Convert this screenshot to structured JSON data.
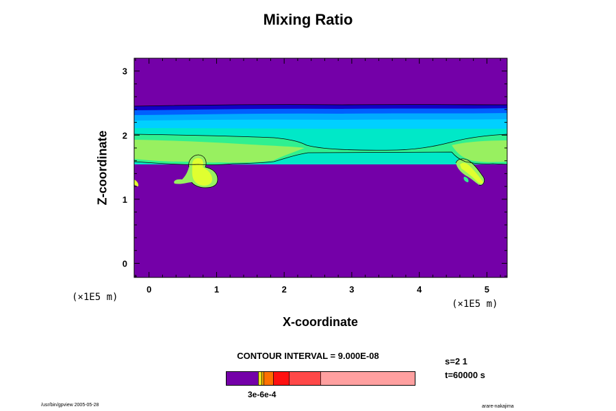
{
  "chart_data": {
    "type": "contour",
    "title": "Mixing Ratio",
    "xlabel": "X-coordinate",
    "ylabel": "Z-coordinate",
    "x_unit": "(×1E5 m)",
    "y_unit": "(×1E5 m)",
    "xlim": [
      -0.22,
      5.3
    ],
    "ylim": [
      -0.22,
      3.2
    ],
    "x_ticks": [
      "0",
      "1",
      "2",
      "3",
      "4",
      "5"
    ],
    "y_ticks": [
      "0",
      "1",
      "2",
      "3"
    ],
    "contour_interval": "CONTOUR INTERVAL = 9.000E-08",
    "colorbar_label": "3e-6e-4",
    "levels": [
      {
        "name": "background",
        "color": "#7400a8"
      },
      {
        "name": "level-1",
        "color": "#1300c4"
      },
      {
        "name": "level-2",
        "color": "#0060ff"
      },
      {
        "name": "level-3",
        "color": "#00aaff"
      },
      {
        "name": "level-4",
        "color": "#00d0ff"
      },
      {
        "name": "level-5",
        "color": "#00e8c8"
      },
      {
        "name": "level-6",
        "color": "#30f090"
      },
      {
        "name": "level-7",
        "color": "#98f060"
      },
      {
        "name": "level-8",
        "color": "#e0ff30"
      }
    ],
    "colorbar_colors": [
      "#7400a8",
      "#e8e020",
      "#ffb000",
      "#ff7000",
      "#ff1010",
      "#ff4848",
      "#ffa0a0"
    ],
    "plume_features": [
      {
        "name": "cloud-layer",
        "z_range": [
          1.55,
          2.45
        ]
      },
      {
        "name": "plume-left",
        "x_center": 0.72,
        "z_range": [
          1.2,
          1.6
        ]
      },
      {
        "name": "plume-right",
        "x_center": 4.7,
        "z_range": [
          1.2,
          1.55
        ]
      }
    ]
  },
  "meta": {
    "step": "s=2 1",
    "time": "t=60000 s"
  },
  "footer": {
    "left": "/usr/bin/gpview 2005-05-28",
    "right": "arare-nakajima"
  }
}
